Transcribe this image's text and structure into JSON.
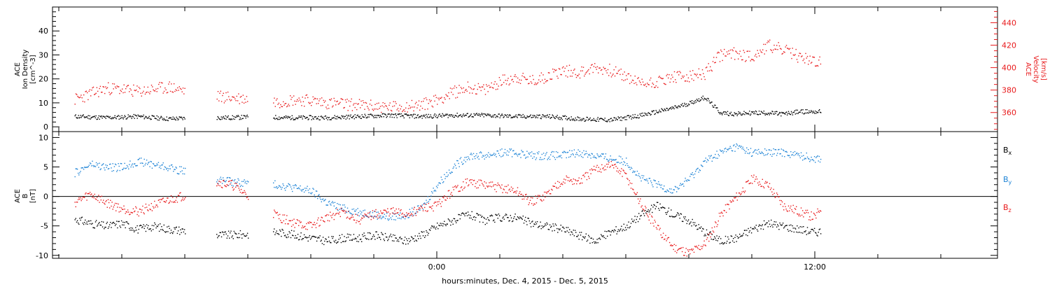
{
  "chart_data": [
    {
      "type": "scatter",
      "panel": "ion-density-velocity",
      "ylabel_left": [
        "ACE",
        "Ion Density",
        "[cm^-3]"
      ],
      "ylabel_right": [
        "ACE",
        "Velocity",
        "[km/s]"
      ],
      "ylim_left": [
        -2,
        50
      ],
      "yticks_left": [
        "0",
        "10",
        "20",
        "30",
        "40"
      ],
      "yticks_left_values": [
        0,
        10,
        20,
        30,
        40
      ],
      "ylim_right": [
        343,
        454
      ],
      "yticks_right": [
        "360",
        "380",
        "400",
        "420",
        "440"
      ],
      "yticks_right_values": [
        360,
        380,
        400,
        420,
        440
      ],
      "colors": {
        "density": "#000000",
        "velocity": "#e8191b"
      },
      "series": [
        {
          "axis": "left",
          "color": "#000000",
          "x": [
            -11.5,
            -10.5,
            -9.5,
            -8.5,
            -7.5,
            -6.5,
            -5.5,
            -5.0,
            -4.5,
            -3.5,
            -2.5,
            -1.5,
            -0.5,
            0.5,
            1.5,
            2.5,
            3.5,
            4.5,
            5.5,
            6.5,
            7.5,
            8.0,
            8.5,
            9.0,
            9.5,
            10.0,
            10.5,
            11.0,
            11.5,
            12.0,
            12.2
          ],
          "y": [
            4.5,
            4.0,
            4.5,
            3.5,
            4.0,
            4.0,
            4.5,
            4.0,
            4.0,
            4.0,
            4.5,
            5.0,
            4.5,
            5.0,
            5.0,
            4.5,
            4.5,
            3.5,
            3.0,
            5.0,
            8.0,
            10.0,
            12.5,
            6.0,
            5.5,
            6.0,
            6.0,
            5.5,
            6.5,
            6.5,
            6.5
          ]
        },
        {
          "axis": "right",
          "color": "#e8191b",
          "x": [
            -11.5,
            -11.0,
            -10.5,
            -10.0,
            -9.5,
            -8.5,
            -7.5,
            -5.0,
            -4.5,
            -4.0,
            -3.5,
            -3.0,
            -2.5,
            -2.0,
            -1.5,
            -1.0,
            -0.5,
            0.0,
            0.5,
            1.0,
            1.5,
            2.0,
            2.5,
            3.0,
            3.5,
            4.0,
            4.5,
            5.0,
            5.5,
            6.0,
            6.5,
            7.0,
            7.5,
            8.0,
            8.5,
            9.0,
            9.5,
            10.0,
            10.5,
            11.0,
            11.5,
            12.0,
            12.2
          ],
          "y": [
            372,
            377,
            382,
            381,
            379,
            383,
            376,
            370,
            372,
            371,
            369,
            368,
            367,
            366,
            365,
            366,
            367,
            372,
            378,
            383,
            380,
            388,
            392,
            388,
            393,
            398,
            396,
            400,
            398,
            392,
            386,
            388,
            392,
            392,
            395,
            412,
            413,
            410,
            420,
            416,
            410,
            406,
            404
          ]
        }
      ]
    },
    {
      "type": "scatter",
      "panel": "magnetic-field",
      "ylabel_left": [
        "ACE",
        "B",
        "[nT]"
      ],
      "ylim": [
        -10.5,
        11
      ],
      "yticks": [
        "-10",
        "-5",
        "0",
        "5",
        "10"
      ],
      "yticks_values": [
        -10,
        -5,
        0,
        5,
        10
      ],
      "zero_line": true,
      "legend_position": "right",
      "series": [
        {
          "name": "B_x",
          "label_main": "B",
          "label_sub": "x",
          "color": "#000000",
          "x": [
            -11.5,
            -11.0,
            -10.5,
            -10.0,
            -9.5,
            -9.0,
            -8.5,
            -7.5,
            -7.0,
            -6.5,
            -5.0,
            -4.5,
            -4.0,
            -3.5,
            -3.0,
            -2.5,
            -2.0,
            -1.5,
            -1.0,
            -0.5,
            0.0,
            0.5,
            1.0,
            1.5,
            2.0,
            2.5,
            3.0,
            3.5,
            4.0,
            4.5,
            5.0,
            5.5,
            6.0,
            6.5,
            7.0,
            7.5,
            8.0,
            8.5,
            9.0,
            9.5,
            10.0,
            10.5,
            11.0,
            11.5,
            12.0,
            12.2
          ],
          "y": [
            -3.8,
            -4.5,
            -5.0,
            -4.5,
            -5.5,
            -5.0,
            -5.5,
            -6.0,
            -6.5,
            -6.5,
            -6.0,
            -6.5,
            -7.0,
            -7.5,
            -7.0,
            -7.0,
            -6.5,
            -7.0,
            -7.5,
            -6.5,
            -5.0,
            -4.0,
            -3.0,
            -4.0,
            -3.5,
            -3.5,
            -4.5,
            -5.0,
            -5.5,
            -6.5,
            -7.5,
            -6.0,
            -5.0,
            -3.0,
            -1.5,
            -3.0,
            -4.0,
            -6.0,
            -7.5,
            -7.0,
            -5.5,
            -4.5,
            -5.0,
            -5.5,
            -6.0,
            -5.8
          ]
        },
        {
          "name": "B_y",
          "label_main": "B",
          "label_sub": "y",
          "color": "#1f84d6",
          "x": [
            -11.5,
            -11.0,
            -10.5,
            -10.0,
            -9.5,
            -9.0,
            -8.5,
            -7.5,
            -7.0,
            -6.5,
            -5.0,
            -4.5,
            -4.0,
            -3.5,
            -3.0,
            -2.5,
            -2.0,
            -1.5,
            -1.0,
            -0.5,
            0.0,
            0.5,
            1.0,
            1.5,
            2.0,
            2.5,
            3.0,
            3.5,
            4.0,
            4.5,
            5.0,
            5.5,
            6.0,
            6.5,
            7.0,
            7.5,
            8.0,
            8.5,
            9.0,
            9.5,
            10.0,
            10.5,
            11.0,
            11.5,
            12.0,
            12.2
          ],
          "y": [
            4.0,
            5.5,
            5.0,
            5.0,
            6.0,
            5.5,
            5.0,
            3.5,
            3.0,
            2.5,
            2.0,
            1.5,
            1.0,
            -1.0,
            -2.0,
            -2.5,
            -3.0,
            -3.5,
            -3.0,
            -2.0,
            2.0,
            5.0,
            7.0,
            7.0,
            7.5,
            7.5,
            7.0,
            7.0,
            7.0,
            7.5,
            7.0,
            6.5,
            6.0,
            3.0,
            2.0,
            1.0,
            3.0,
            6.0,
            7.5,
            8.5,
            7.5,
            7.5,
            7.5,
            7.0,
            6.5,
            6.5
          ]
        },
        {
          "name": "B_z",
          "label_main": "B",
          "label_sub": "z",
          "color": "#e8191b",
          "x": [
            -11.5,
            -11.0,
            -10.5,
            -10.0,
            -9.5,
            -9.0,
            -8.5,
            -7.5,
            -7.0,
            -6.5,
            -5.0,
            -4.5,
            -4.0,
            -3.5,
            -3.0,
            -2.5,
            -2.0,
            -1.5,
            -1.0,
            -0.5,
            0.0,
            0.5,
            1.0,
            1.5,
            2.0,
            2.5,
            3.0,
            3.5,
            4.0,
            4.5,
            5.0,
            5.5,
            6.0,
            6.5,
            7.0,
            7.5,
            8.0,
            8.5,
            9.0,
            9.5,
            10.0,
            10.5,
            11.0,
            11.5,
            12.0,
            12.2
          ],
          "y": [
            -1.0,
            0.5,
            -1.0,
            -2.0,
            -2.5,
            -1.5,
            -0.5,
            1.0,
            2.5,
            2.0,
            -3.5,
            -4.5,
            -5.0,
            -3.5,
            -2.5,
            -4.0,
            -3.0,
            -2.5,
            -3.0,
            -2.0,
            -1.5,
            1.0,
            2.5,
            2.0,
            1.5,
            1.0,
            -1.0,
            0.5,
            3.0,
            2.5,
            4.5,
            5.5,
            3.5,
            -1.5,
            -5.5,
            -8.5,
            -9.5,
            -8.0,
            -3.0,
            0.0,
            3.0,
            2.0,
            -1.5,
            -2.5,
            -3.5,
            -1.5
          ]
        }
      ]
    }
  ],
  "x_axis": {
    "unit": "hours (relative to 0:00, Dec. 5, 2015)",
    "xlim": [
      -12.2,
      17.8
    ],
    "labeled_ticks": [
      "0:00",
      "12:00"
    ],
    "labeled_ticks_values": [
      0,
      12
    ],
    "minor_tick_step": 2,
    "xlabel": "hours:minutes, Dec.  4, 2015 - Dec.  5, 2015"
  }
}
